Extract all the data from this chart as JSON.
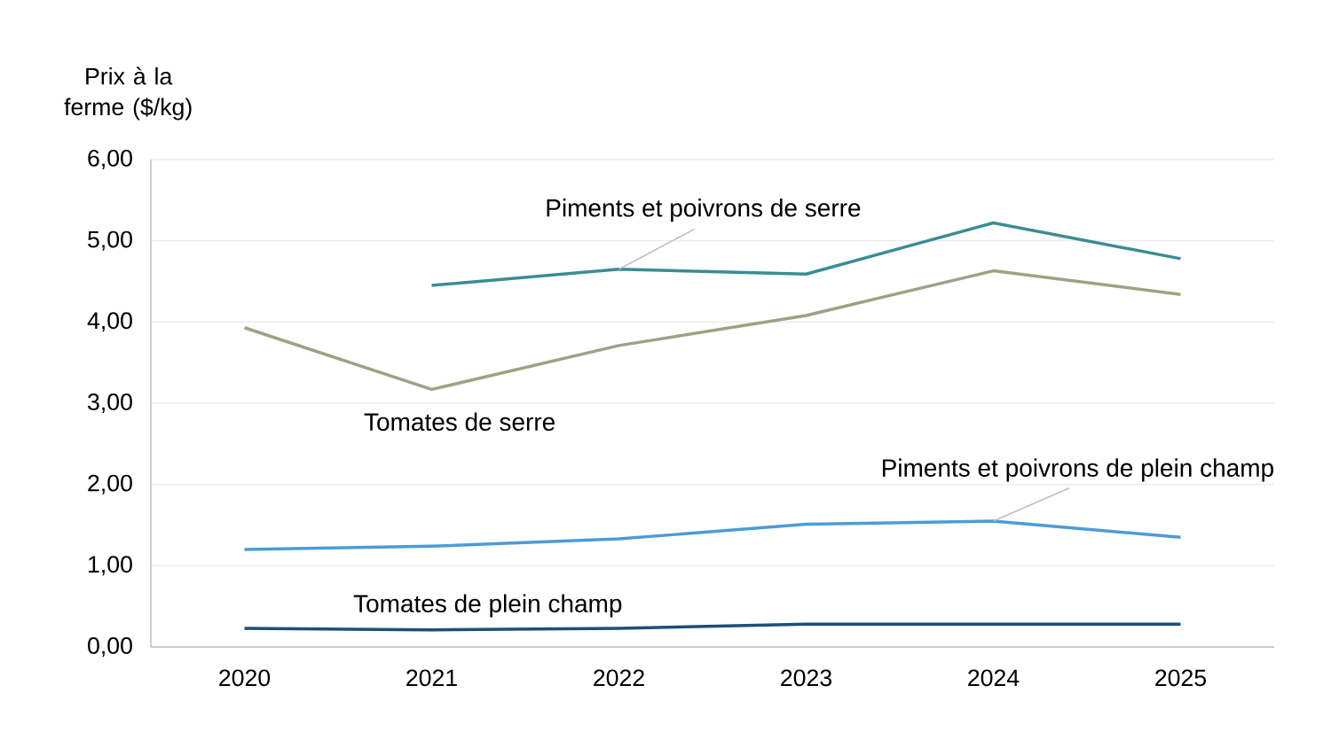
{
  "chart_data": {
    "type": "line",
    "ylabel": "Prix à la ferme ($/kg)",
    "categories": [
      "2020",
      "2021",
      "2022",
      "2023",
      "2024",
      "2025"
    ],
    "series": [
      {
        "name": "Piments et poivrons de serre",
        "color": "#3a8d93",
        "values": [
          null,
          4.45,
          4.65,
          4.59,
          5.22,
          4.78
        ]
      },
      {
        "name": "Tomates de serre",
        "color": "#9ba383",
        "values": [
          3.93,
          3.17,
          3.71,
          4.08,
          4.63,
          4.34
        ]
      },
      {
        "name": "Piments et poivrons de plein champ",
        "color": "#4d9bd6",
        "values": [
          1.2,
          1.24,
          1.33,
          1.51,
          1.55,
          1.35
        ]
      },
      {
        "name": "Tomates de plein champ",
        "color": "#1f4e79",
        "values": [
          0.23,
          0.21,
          0.23,
          0.28,
          0.28,
          0.28
        ]
      }
    ],
    "ylim": [
      0,
      6
    ],
    "yticks": [
      {
        "value": 0,
        "label": "0,00"
      },
      {
        "value": 1,
        "label": "1,00"
      },
      {
        "value": 2,
        "label": "2,00"
      },
      {
        "value": 3,
        "label": "3,00"
      },
      {
        "value": 4,
        "label": "4,00"
      },
      {
        "value": 5,
        "label": "5,00"
      },
      {
        "value": 6,
        "label": "6,00"
      }
    ],
    "grid": "y",
    "legend": false,
    "marker": "none",
    "line_style": "solid"
  }
}
